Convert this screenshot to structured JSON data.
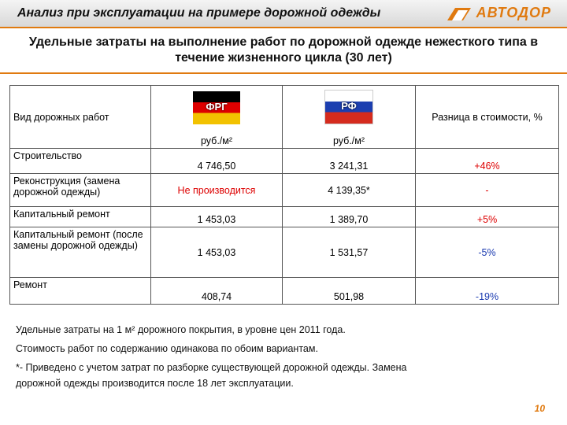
{
  "header": {
    "title": "Анализ при эксплуатации на примере дорожной одежды",
    "logo": "АВТОДОР"
  },
  "subtitle": "Удельные затраты на выполнение работ по дорожной одежде нежесткого типа в течение жизненного цикла (30 лет)",
  "table": {
    "columns": [
      "Вид дорожных работ",
      "ФРГ",
      "РФ",
      "Разница в стоимости, %"
    ],
    "units": [
      "руб./м²",
      "руб./м²"
    ],
    "rows": [
      [
        "Строительство",
        "4 746,50",
        "3 241,31",
        "+46%"
      ],
      [
        "Реконструкция (замена дорожной одежды)",
        "Не производится",
        "4 139,35*",
        "-"
      ],
      [
        "Капитальный ремонт",
        "1 453,03",
        "1 389,70",
        "+5%"
      ],
      [
        "Капитальный ремонт (после замены дорожной одежды)",
        "1 453,03",
        "1 531,57",
        "-5%"
      ],
      [
        "Ремонт",
        "408,74",
        "501,98",
        "-19%"
      ]
    ]
  },
  "notes": [
    "Удельные затраты на 1 м² дорожного покрытия, в уровне цен 2011 года.",
    "Стоимость работ по содержанию одинакова по обоим вариантам.",
    "*- Приведено с учетом затрат по разборке существующей дорожной одежды. Замена",
    "дорожной одежды производится после 18 лет эксплуатации."
  ],
  "page_number": "10"
}
